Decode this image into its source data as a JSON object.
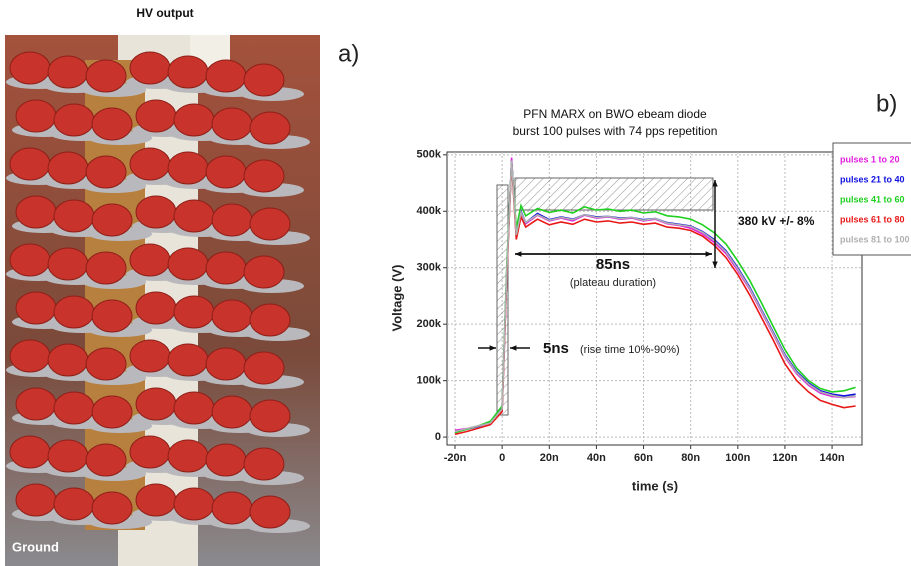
{
  "panels": {
    "photo_title": "HV output",
    "photo_footer": "Ground",
    "label_a": "a)",
    "label_b": "b)"
  },
  "chart_data": {
    "type": "line",
    "title": "PFN MARX on BWO ebeam diode",
    "subtitle": "burst 100 pulses with 74 pps repetition",
    "x_label": "time (s)",
    "y_label": "Voltage (V)",
    "annotations": [
      "380 kV +/- 8%",
      "85ns",
      "(plateau duration)",
      "5ns",
      "(rise time 10%-90%)"
    ],
    "grid": true,
    "legend": "upper right",
    "xlim": [
      -2.34e-08,
      1.527e-07
    ],
    "xticks": [
      {
        "value": -2e-08,
        "label": "-20n"
      },
      0,
      {
        "value": 2e-08,
        "label": "20n"
      },
      {
        "value": 4e-08,
        "label": "40n"
      },
      {
        "value": 6e-08,
        "label": "60n"
      },
      {
        "value": 8e-08,
        "label": "80n"
      },
      {
        "value": 1e-07,
        "label": "100n"
      },
      {
        "value": 1.2e-07,
        "label": "120n"
      },
      {
        "value": 1.4e-07,
        "label": "140n"
      }
    ],
    "ylim": [
      -14000,
      505000
    ],
    "yticks": [
      0,
      {
        "value": 100000,
        "label": "100k"
      },
      {
        "value": 200000,
        "label": "200k"
      },
      {
        "value": 300000,
        "label": "300k"
      },
      {
        "value": 400000,
        "label": "400k"
      },
      {
        "value": 500000,
        "label": "500k"
      }
    ],
    "x": [
      -2e-08,
      -1.5e-08,
      -1e-08,
      -5e-09,
      0,
      2e-09,
      4e-09,
      6e-09,
      8e-09,
      1e-08,
      1.5e-08,
      2e-08,
      2.5e-08,
      3e-08,
      3.5e-08,
      4e-08,
      4.5e-08,
      5e-08,
      5.5e-08,
      6e-08,
      6.5e-08,
      7e-08,
      7.5e-08,
      8e-08,
      8.5e-08,
      9e-08,
      9.5e-08,
      1e-07,
      1.05e-07,
      1.1e-07,
      1.15e-07,
      1.2e-07,
      1.25e-07,
      1.3e-07,
      1.35e-07,
      1.4e-07,
      1.45e-07,
      1.5e-07
    ],
    "series": [
      {
        "name": "pulses 1 to 20",
        "color": "#e020e0",
        "values": [
          12000,
          15000,
          20000,
          25000,
          50000,
          290000,
          495000,
          355000,
          398000,
          378000,
          393000,
          383000,
          388000,
          383000,
          393000,
          388000,
          390000,
          386000,
          388000,
          383000,
          386000,
          378000,
          375000,
          370000,
          360000,
          345000,
          325000,
          295000,
          262000,
          222000,
          182000,
          142000,
          112000,
          92000,
          78000,
          72000,
          70000,
          72000
        ]
      },
      {
        "name": "pulses 21 to 40",
        "color": "#1010e0",
        "values": [
          10000,
          14000,
          19000,
          26000,
          52000,
          300000,
          490000,
          360000,
          400000,
          380000,
          396000,
          385000,
          390000,
          386000,
          394000,
          390000,
          391000,
          388000,
          389000,
          385000,
          387000,
          380000,
          377000,
          374000,
          364000,
          350000,
          330000,
          300000,
          266000,
          226000,
          186000,
          146000,
          116000,
          96000,
          82000,
          76000,
          73000,
          76000
        ]
      },
      {
        "name": "pulses 41 to 60",
        "color": "#20d020",
        "values": [
          8000,
          14000,
          20000,
          28000,
          55000,
          310000,
          488000,
          370000,
          410000,
          392000,
          405000,
          398000,
          402000,
          397000,
          408000,
          402000,
          404000,
          400000,
          402000,
          397000,
          399000,
          392000,
          390000,
          386000,
          376000,
          362000,
          342000,
          312000,
          278000,
          238000,
          196000,
          155000,
          122000,
          100000,
          86000,
          80000,
          82000,
          88000
        ]
      },
      {
        "name": "pulses 61 to 80",
        "color": "#e81818",
        "values": [
          5000,
          10000,
          16000,
          22000,
          45000,
          290000,
          485000,
          350000,
          390000,
          372000,
          386000,
          376000,
          381000,
          377000,
          386000,
          381000,
          383000,
          379000,
          381000,
          377000,
          379000,
          372000,
          370000,
          366000,
          356000,
          340000,
          318000,
          288000,
          252000,
          212000,
          172000,
          130000,
          100000,
          80000,
          65000,
          58000,
          52000,
          55000
        ]
      },
      {
        "name": "pulses 81 to 100",
        "color": "#b0b0b0",
        "values": [
          10000,
          15000,
          20000,
          25000,
          50000,
          298000,
          490000,
          358000,
          398000,
          380000,
          394000,
          384000,
          389000,
          385000,
          394000,
          389000,
          391000,
          387000,
          389000,
          384000,
          387000,
          379000,
          376000,
          373000,
          363000,
          348000,
          328000,
          298000,
          264000,
          224000,
          184000,
          144000,
          114000,
          94000,
          80000,
          74000,
          70000,
          73000
        ]
      }
    ]
  }
}
